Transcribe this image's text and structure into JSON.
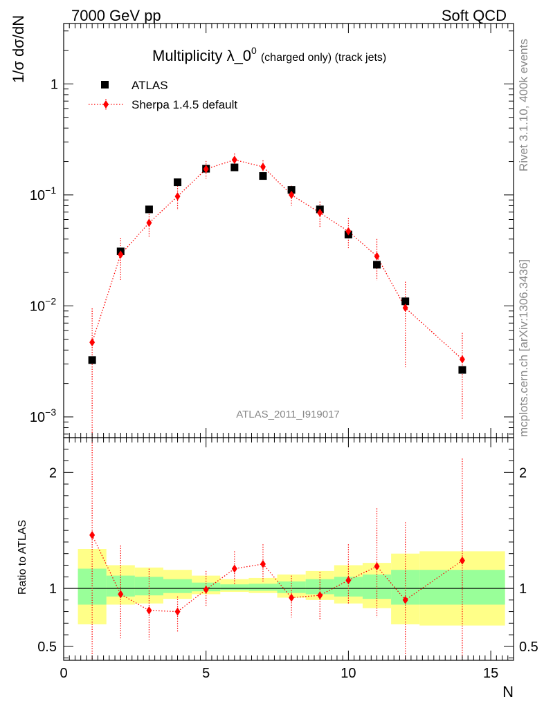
{
  "header": {
    "left": "7000 GeV pp",
    "right": "Soft QCD"
  },
  "side_labels": {
    "rivet": "Rivet 3.1.10,  400k events",
    "mcplots": "mcplots.cern.ch [arXiv:1306.3436]"
  },
  "chart_data": [
    {
      "type": "scatter",
      "panel": "main",
      "title": "Multiplicity λ_0^0 (charged only) (track jets)",
      "title_main": "Multiplicity λ_0",
      "title_sup": "0",
      "title_small": "(charged only) (track jets)",
      "ylabel": "1/σ dσ/dN",
      "yscale": "log",
      "ylim": [
        0.00065,
        3.5
      ],
      "xlim": [
        0,
        15.8
      ],
      "y_ticks": [
        {
          "value": 1,
          "base": "1",
          "exp": ""
        },
        {
          "value": 0.1,
          "base": "10",
          "exp": "−1"
        },
        {
          "value": 0.01,
          "base": "10",
          "exp": "−2"
        },
        {
          "value": 0.001,
          "base": "10",
          "exp": "−3"
        }
      ],
      "watermark": "ATLAS_2011_I919017",
      "legend": [
        "ATLAS",
        "Sherpa 1.4.5 default"
      ],
      "legend_position": "top-left",
      "series": [
        {
          "name": "ATLAS",
          "marker": "square",
          "color": "#000000",
          "x": [
            1,
            2,
            3,
            4,
            5,
            6,
            7,
            8,
            9,
            10,
            11,
            12,
            14
          ],
          "y": [
            0.00325,
            0.031,
            0.074,
            0.13,
            0.172,
            0.177,
            0.148,
            0.111,
            0.074,
            0.044,
            0.0235,
            0.011,
            0.00265
          ]
        },
        {
          "name": "Sherpa 1.4.5 default",
          "marker": "diamond",
          "line": "dotted",
          "color": "#ff0000",
          "x": [
            1,
            2,
            3,
            4,
            5,
            6,
            7,
            8,
            9,
            10,
            11,
            12,
            14
          ],
          "y": [
            0.0047,
            0.029,
            0.056,
            0.097,
            0.171,
            0.207,
            0.179,
            0.1,
            0.069,
            0.047,
            0.028,
            0.0096,
            0.0033
          ],
          "y_low": [
            0.00065,
            0.017,
            0.041,
            0.073,
            0.14,
            0.18,
            0.152,
            0.08,
            0.051,
            0.033,
            0.017,
            0.0028,
            0.00095
          ],
          "y_high": [
            0.0095,
            0.041,
            0.071,
            0.121,
            0.202,
            0.236,
            0.205,
            0.121,
            0.087,
            0.062,
            0.04,
            0.0165,
            0.0057
          ]
        }
      ]
    },
    {
      "type": "scatter",
      "panel": "ratio",
      "ylabel": "Ratio to ATLAS",
      "xlabel": "N",
      "ylim": [
        0.38,
        2.3
      ],
      "xlim": [
        0,
        15.8
      ],
      "y_ticks": [
        {
          "value": 2,
          "label": "2"
        },
        {
          "value": 1,
          "label": "1"
        },
        {
          "value": 0.5,
          "label": "0.5"
        }
      ],
      "x_ticks": [
        {
          "value": 0,
          "label": "0"
        },
        {
          "value": 5,
          "label": "5"
        },
        {
          "value": 10,
          "label": "10"
        },
        {
          "value": 15,
          "label": "15"
        }
      ],
      "bands": {
        "edges": [
          0.5,
          1.5,
          2.5,
          3.5,
          4.5,
          5.5,
          6.5,
          7.5,
          8.5,
          9.5,
          10.5,
          11.5,
          12.5,
          15.5
        ],
        "yellow_low": [
          0.69,
          0.86,
          0.87,
          0.91,
          0.95,
          0.97,
          0.96,
          0.92,
          0.9,
          0.87,
          0.83,
          0.69,
          0.68
        ],
        "yellow_high": [
          1.34,
          1.2,
          1.18,
          1.16,
          1.11,
          1.08,
          1.09,
          1.12,
          1.15,
          1.2,
          1.22,
          1.3,
          1.32
        ],
        "green_low": [
          0.86,
          0.93,
          0.94,
          0.96,
          0.975,
          0.985,
          0.98,
          0.96,
          0.95,
          0.93,
          0.91,
          0.86,
          0.86
        ],
        "green_high": [
          1.17,
          1.11,
          1.1,
          1.08,
          1.05,
          1.035,
          1.04,
          1.06,
          1.08,
          1.1,
          1.12,
          1.16,
          1.16
        ],
        "yellow_color": "#ffff88",
        "green_color": "#99ff99"
      },
      "series": [
        {
          "name": "Sherpa 1.4.5 default / ATLAS",
          "marker": "diamond",
          "line": "dotted",
          "color": "#ff0000",
          "x": [
            1,
            2,
            3,
            4,
            5,
            6,
            7,
            8,
            9,
            10,
            11,
            12,
            14
          ],
          "y": [
            1.46,
            0.95,
            0.81,
            0.8,
            0.99,
            1.17,
            1.21,
            0.92,
            0.94,
            1.07,
            1.19,
            0.9,
            1.24
          ],
          "y_low": [
            0.38,
            0.57,
            0.56,
            0.62,
            0.85,
            1.03,
            1.06,
            0.75,
            0.73,
            0.87,
            0.75,
            0.38,
            0.38
          ],
          "y_high": [
            2.3,
            1.37,
            1.17,
            0.93,
            1.15,
            1.32,
            1.38,
            1.11,
            1.14,
            1.38,
            1.69,
            1.57,
            2.12
          ]
        }
      ]
    }
  ]
}
